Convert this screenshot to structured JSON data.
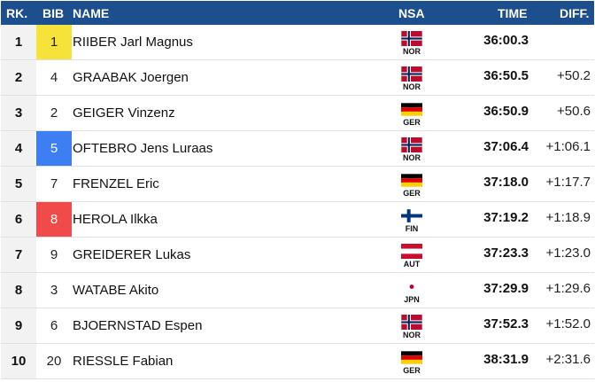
{
  "header": {
    "rank": "RK.",
    "bib": "BIB",
    "name": "NAME",
    "nsa": "NSA",
    "time": "TIME",
    "diff": "DIFF."
  },
  "bib_colors": {
    "yellow": "#f5e33b",
    "blue": "#3d7ff2",
    "red": "#f04a4a"
  },
  "rows": [
    {
      "rank": "1",
      "bib": "1",
      "bib_highlight": "yellow",
      "name": "RIIBER Jarl Magnus",
      "nsa": "NOR",
      "flag": "norway-flag-icon",
      "time": "36:00.3",
      "diff": ""
    },
    {
      "rank": "2",
      "bib": "4",
      "bib_highlight": "",
      "name": "GRAABAK Joergen",
      "nsa": "NOR",
      "flag": "norway-flag-icon",
      "time": "36:50.5",
      "diff": "+50.2"
    },
    {
      "rank": "3",
      "bib": "2",
      "bib_highlight": "",
      "name": "GEIGER Vinzenz",
      "nsa": "GER",
      "flag": "germany-flag-icon",
      "time": "36:50.9",
      "diff": "+50.6"
    },
    {
      "rank": "4",
      "bib": "5",
      "bib_highlight": "blue",
      "name": "OFTEBRO Jens Luraas",
      "nsa": "NOR",
      "flag": "norway-flag-icon",
      "time": "37:06.4",
      "diff": "+1:06.1"
    },
    {
      "rank": "5",
      "bib": "7",
      "bib_highlight": "",
      "name": "FRENZEL Eric",
      "nsa": "GER",
      "flag": "germany-flag-icon",
      "time": "37:18.0",
      "diff": "+1:17.7"
    },
    {
      "rank": "6",
      "bib": "8",
      "bib_highlight": "red",
      "name": "HEROLA Ilkka",
      "nsa": "FIN",
      "flag": "finland-flag-icon",
      "time": "37:19.2",
      "diff": "+1:18.9"
    },
    {
      "rank": "7",
      "bib": "9",
      "bib_highlight": "",
      "name": "GREIDERER Lukas",
      "nsa": "AUT",
      "flag": "austria-flag-icon",
      "time": "37:23.3",
      "diff": "+1:23.0"
    },
    {
      "rank": "8",
      "bib": "3",
      "bib_highlight": "",
      "name": "WATABE Akito",
      "nsa": "JPN",
      "flag": "japan-flag-icon",
      "time": "37:29.9",
      "diff": "+1:29.6"
    },
    {
      "rank": "9",
      "bib": "6",
      "bib_highlight": "",
      "name": "BJOERNSTAD Espen",
      "nsa": "NOR",
      "flag": "norway-flag-icon",
      "time": "37:52.3",
      "diff": "+1:52.0"
    },
    {
      "rank": "10",
      "bib": "20",
      "bib_highlight": "",
      "name": "RIESSLE Fabian",
      "nsa": "GER",
      "flag": "germany-flag-icon",
      "time": "38:31.9",
      "diff": "+2:31.6"
    }
  ]
}
